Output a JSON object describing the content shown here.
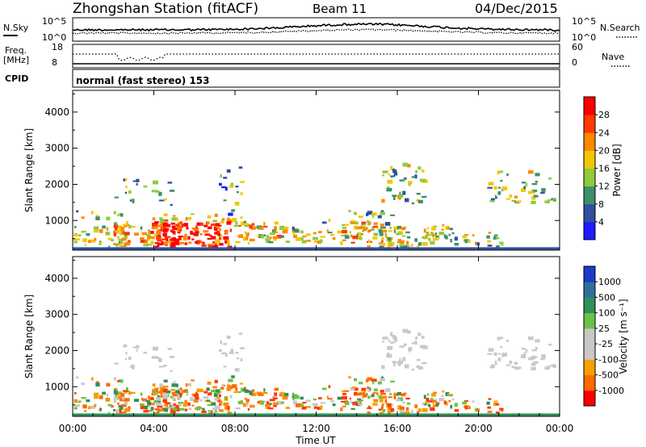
{
  "header": {
    "station": "Zhongshan Station (fitACF)",
    "beam": "Beam 11",
    "date": "04/Dec/2015"
  },
  "noise_panel": {
    "left_label": "N.Sky",
    "right_label": "N.Search",
    "left_ticks": [
      "10^5",
      "10^0"
    ],
    "right_ticks": [
      "10^5",
      "10^0"
    ]
  },
  "freq_panel": {
    "left_label_top": "Freq.",
    "left_label_unit": "[MHz]",
    "left_ticks": [
      "18",
      "8"
    ],
    "right_label": "Nave",
    "right_ticks": [
      "60",
      "0"
    ]
  },
  "cpid": {
    "label": "CPID",
    "mode": "normal (fast stereo) 153"
  },
  "chart_data": [
    {
      "type": "heatmap",
      "name": "power",
      "ylabel": "Slant Range [km]",
      "yticks": [
        1000,
        2000,
        3000,
        4000
      ],
      "ylim": [
        180,
        4600
      ],
      "colorbar": {
        "label": "Power [dB]",
        "ticks": [
          "4",
          "8",
          "12",
          "16",
          "20",
          "24",
          "28"
        ],
        "colors": [
          "#1c1cff",
          "#2f4fa0",
          "#3f8f6a",
          "#8fca3c",
          "#f2c700",
          "#ff8800",
          "#ff3a00",
          "#ff0000"
        ]
      }
    },
    {
      "type": "heatmap",
      "name": "velocity",
      "ylabel": "Slant Range [km]",
      "yticks": [
        1000,
        2000,
        3000,
        4000
      ],
      "ylim": [
        180,
        4600
      ],
      "colorbar": {
        "label": "Velocity [m s⁻¹]",
        "ticks": [
          "1000",
          "500",
          "100",
          "25",
          "-25",
          "-100",
          "-500",
          "-1000"
        ],
        "colors": [
          "#1c3cc8",
          "#2f6f9a",
          "#2f8f5a",
          "#6ac24a",
          "#c8c8c8",
          "#c8c8c8",
          "#f7a000",
          "#ff6a00",
          "#ff0000"
        ]
      }
    }
  ],
  "x_axis": {
    "label": "Time UT",
    "ticks": [
      "00:00",
      "04:00",
      "08:00",
      "12:00",
      "16:00",
      "20:00",
      "00:00"
    ]
  }
}
